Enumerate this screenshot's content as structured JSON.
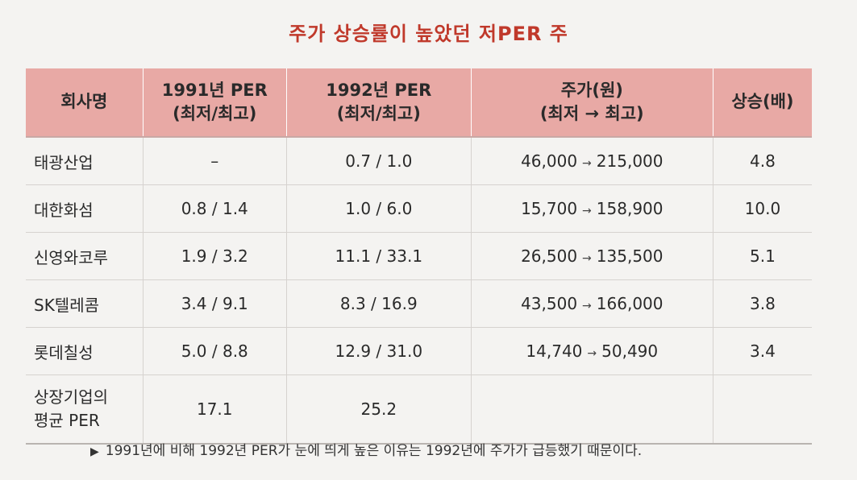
{
  "title": "주가 상승률이 높았던 저PER 주",
  "headers": {
    "company": "회사명",
    "per1991_line1": "1991년 PER",
    "per1991_line2": "(최저/최고)",
    "per1992_line1": "1992년 PER",
    "per1992_line2": "(최저/최고)",
    "price_line1": "주가(원)",
    "price_line2": "(최저 → 최고)",
    "rise": "상승(배)"
  },
  "rows": [
    {
      "company": "태광산업",
      "per1991": "–",
      "per1992": "0.7 / 1.0",
      "price_low": "46,000",
      "price_high": "215,000",
      "rise": "4.8"
    },
    {
      "company": "대한화섬",
      "per1991": "0.8 / 1.4",
      "per1992": "1.0 / 6.0",
      "price_low": "15,700",
      "price_high": "158,900",
      "rise": "10.0"
    },
    {
      "company": "신영와코루",
      "per1991": "1.9 / 3.2",
      "per1992": "11.1 / 33.1",
      "price_low": "26,500",
      "price_high": "135,500",
      "rise": "5.1"
    },
    {
      "company": "SK텔레콤",
      "per1991": "3.4 / 9.1",
      "per1992": "8.3 / 16.9",
      "price_low": "43,500",
      "price_high": "166,000",
      "rise": "3.8"
    },
    {
      "company": "롯데칠성",
      "per1991": "5.0 / 8.8",
      "per1992": "12.9 / 31.0",
      "price_low": "14,740",
      "price_high": "50,490",
      "rise": "3.4"
    }
  ],
  "average_row": {
    "label_line1": "상장기업의",
    "label_line2": "평균 PER",
    "per1991": "17.1",
    "per1992": "25.2"
  },
  "arrow": "→",
  "note": {
    "marker": "▶",
    "text": "1991년에 비해 1992년 PER가 눈에 띄게 높은 이유는 1992년에 주가가 급등했기 때문이다."
  }
}
